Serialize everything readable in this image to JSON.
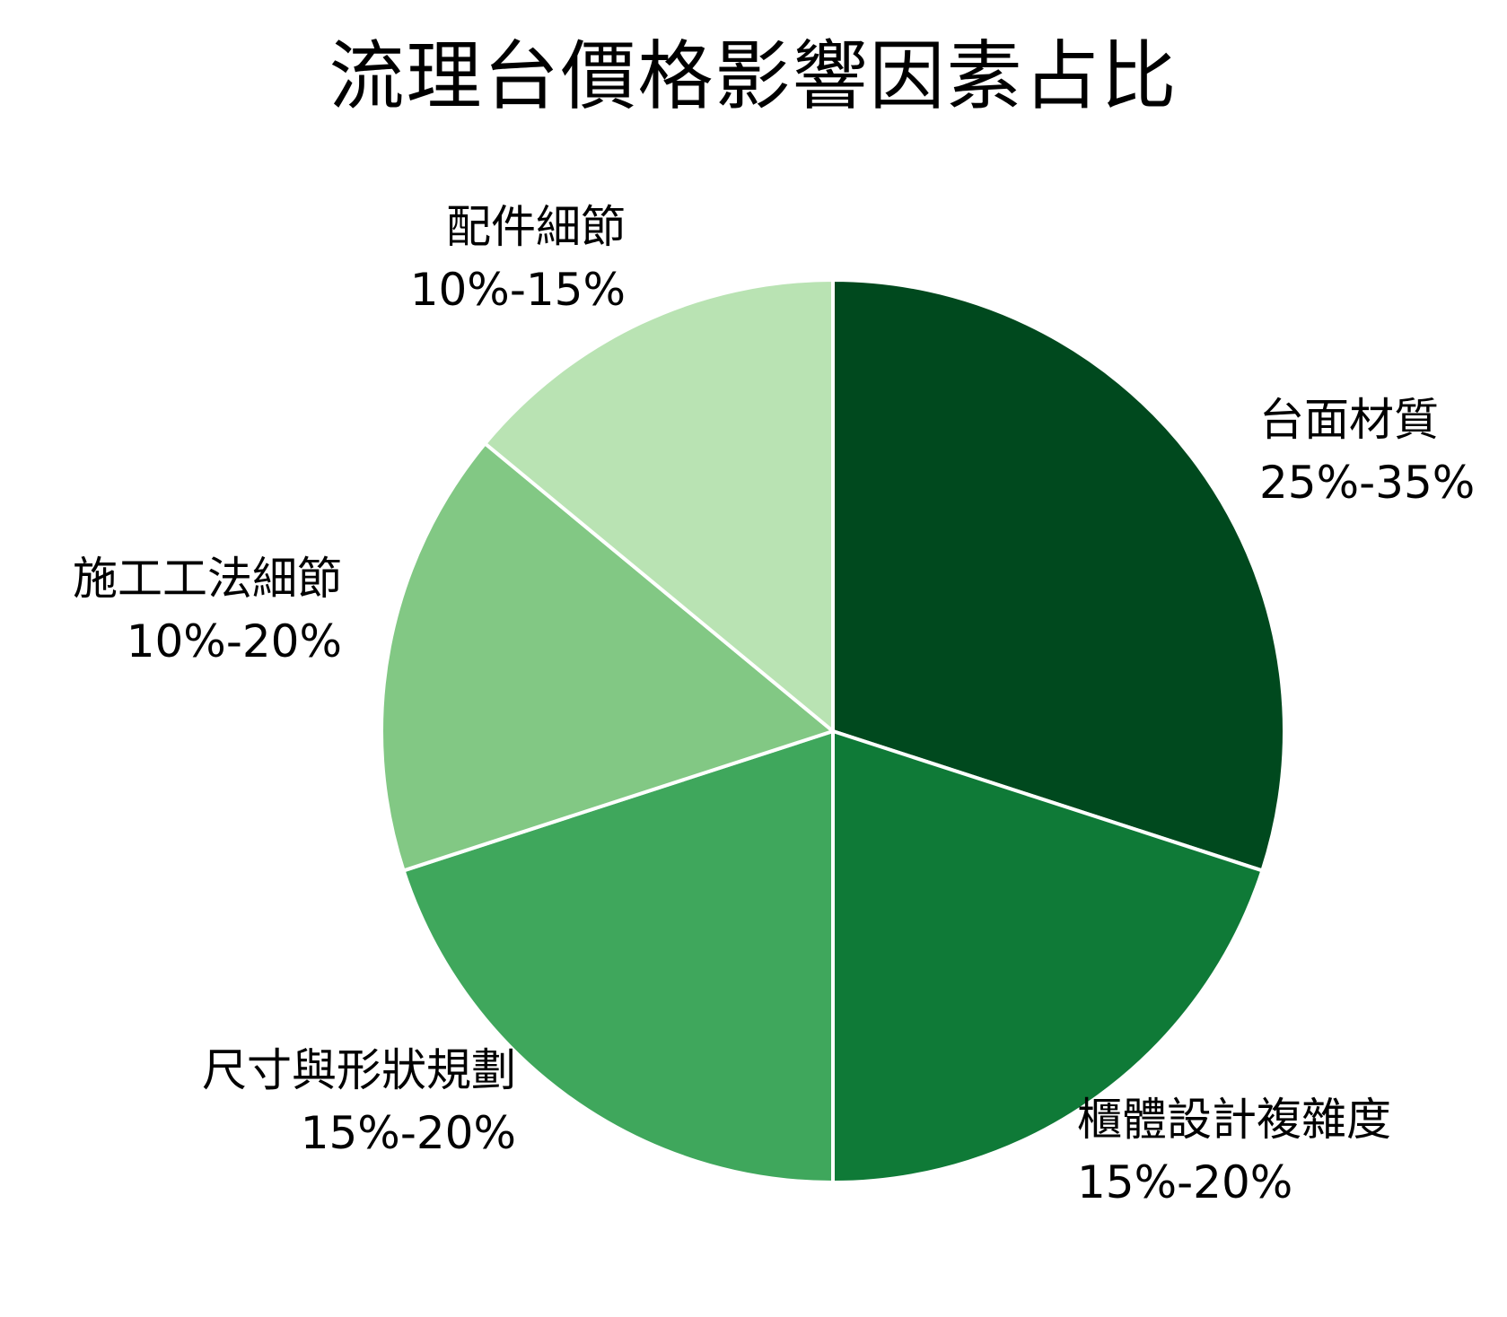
{
  "chart_data": {
    "type": "pie",
    "title": "流理台價格影響因素占比",
    "start": "12 o'clock",
    "direction": "clockwise",
    "slices": [
      {
        "label": "台面材質",
        "range": "25%-35%",
        "share": 30,
        "color": "#00491e"
      },
      {
        "label": "櫃體設計複雜度",
        "range": "15%-20%",
        "share": 20,
        "color": "#0f7a37"
      },
      {
        "label": "尺寸與形狀規劃",
        "range": "15%-20%",
        "share": 20,
        "color": "#3fa75c"
      },
      {
        "label": "施工工法細節",
        "range": "10%-20%",
        "share": 16,
        "color": "#82c884"
      },
      {
        "label": "配件細節",
        "range": "10%-15%",
        "share": 14,
        "color": "#b9e3b3"
      }
    ],
    "slice_border_color": "#ffffff",
    "legend": "none"
  }
}
